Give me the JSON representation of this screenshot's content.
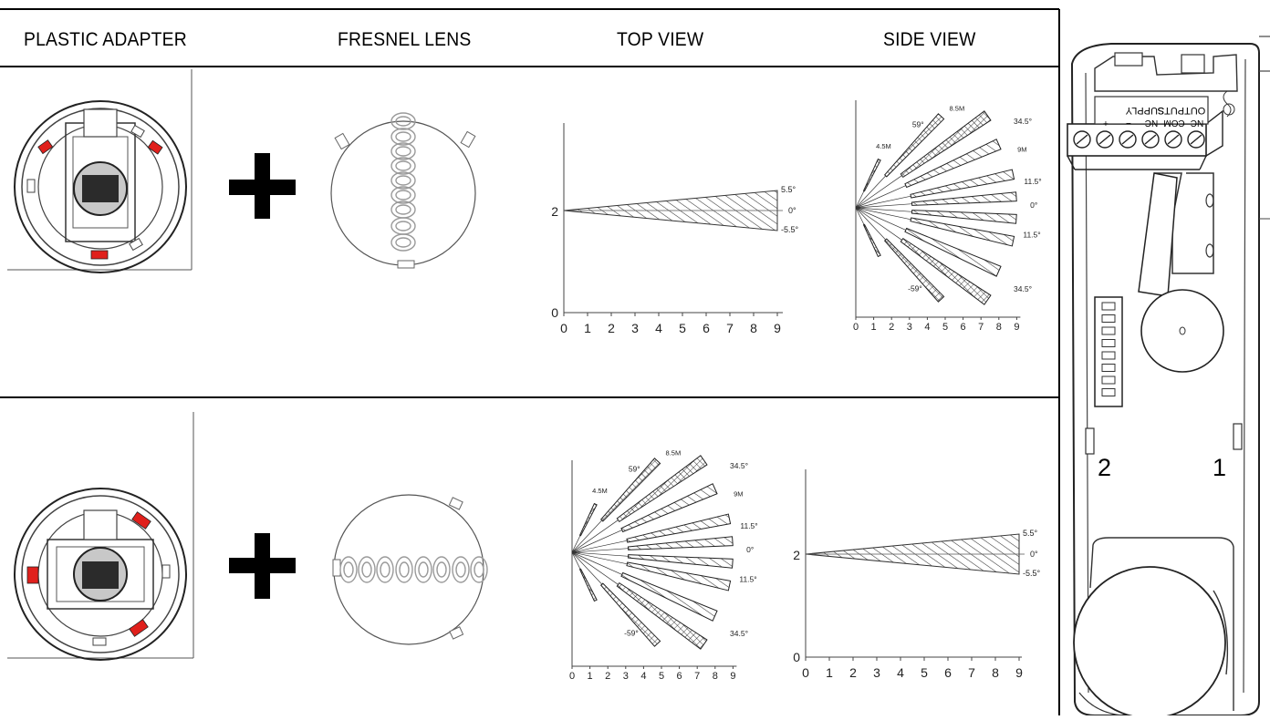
{
  "headers": {
    "plastic_adapter": "PLASTIC ADAPTER",
    "fresnel_lens": "FRESNEL LENS",
    "top_view": "TOP VIEW",
    "side_view": "SIDE VIEW"
  },
  "narrow_chart": {
    "x_ticks": [
      "0",
      "1",
      "2",
      "3",
      "4",
      "5",
      "6",
      "7",
      "8",
      "9"
    ],
    "y_labels": [
      "2",
      "0"
    ],
    "angle_labels": [
      "5.5°",
      "0°",
      "-5.5°"
    ]
  },
  "wide_chart": {
    "x_ticks": [
      "0",
      "1",
      "2",
      "3",
      "4",
      "5",
      "6",
      "7",
      "8",
      "9"
    ],
    "angle_labels": [
      "59°",
      "34.5°",
      "11.5°",
      "0°",
      "11.5°",
      "34.5°",
      "-59°"
    ],
    "range_labels": [
      "4.5M",
      "8.5M",
      "9M"
    ]
  },
  "detector": {
    "terminal_labels": [
      "SUPPLY",
      "OUTPUTS"
    ],
    "terminal_sub": [
      "+",
      "−",
      "NC",
      "COM",
      "NC"
    ],
    "position_labels": [
      "2",
      "1"
    ]
  },
  "colors": {
    "accent_red": "#e0201c",
    "ink": "#000000",
    "line": "#333333"
  }
}
